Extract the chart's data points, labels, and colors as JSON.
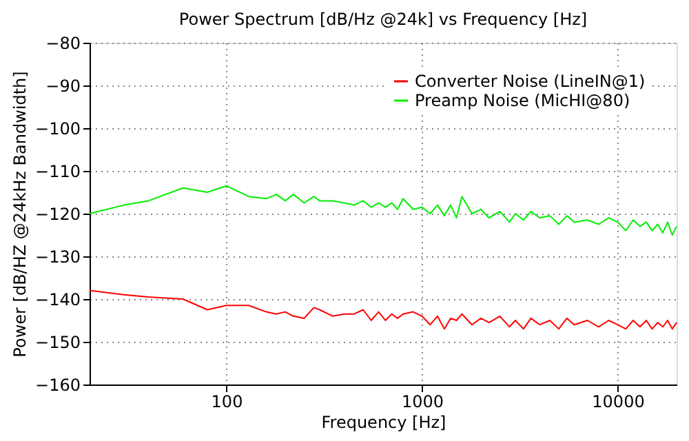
{
  "chart_data": {
    "type": "line",
    "title": "Power Spectrum [dB/Hz @24k] vs Frequency [Hz]",
    "xlabel": "Frequency [Hz]",
    "ylabel": "Power [dB/HZ @24kHz Bandwidth]",
    "x": [
      20,
      30,
      40,
      60,
      80,
      100,
      130,
      160,
      180,
      200,
      220,
      250,
      280,
      300,
      350,
      400,
      450,
      500,
      550,
      600,
      650,
      700,
      750,
      800,
      900,
      1000,
      1100,
      1200,
      1300,
      1400,
      1500,
      1600,
      1800,
      2000,
      2200,
      2500,
      2800,
      3000,
      3300,
      3600,
      4000,
      4500,
      5000,
      5500,
      6000,
      7000,
      8000,
      9000,
      10000,
      11000,
      12000,
      13000,
      14000,
      15000,
      16000,
      17000,
      18000,
      19000,
      20000
    ],
    "series": [
      {
        "name": "Converter Noise (LineIN@1)",
        "color": "#ff0000",
        "values": [
          -138,
          -139,
          -139.5,
          -140,
          -142.5,
          -141.5,
          -141.5,
          -143,
          -143.5,
          -143,
          -144,
          -144.5,
          -142,
          -142.5,
          -144,
          -143.5,
          -143.5,
          -142.5,
          -145,
          -143,
          -145,
          -143.5,
          -144.5,
          -143.5,
          -143,
          -144,
          -146,
          -144,
          -147,
          -144.5,
          -145,
          -143.5,
          -146,
          -144.5,
          -145.5,
          -144,
          -146.5,
          -145,
          -147,
          -144.5,
          -146,
          -145,
          -147,
          -144.5,
          -146,
          -145,
          -146.5,
          -145,
          -146,
          -147,
          -145,
          -146.5,
          -145,
          -147,
          -145.5,
          -146.5,
          -145,
          -147,
          -145.5
        ]
      },
      {
        "name": "Preamp Noise (MicHI@80)",
        "color": "#00ee00",
        "values": [
          -120,
          -118,
          -117,
          -114,
          -115,
          -113.5,
          -116,
          -116.5,
          -115.5,
          -117,
          -115.5,
          -117.5,
          -116,
          -117,
          -117,
          -117.5,
          -118,
          -117,
          -118.5,
          -117.5,
          -118.5,
          -117.5,
          -119,
          -116.5,
          -119,
          -118.5,
          -120,
          -118,
          -120.5,
          -118,
          -121,
          -116,
          -120,
          -119,
          -121,
          -119.5,
          -122,
          -120,
          -121.5,
          -119.5,
          -121,
          -120.5,
          -122.5,
          -120.5,
          -122,
          -121.5,
          -122.5,
          -121,
          -122,
          -124,
          -121.5,
          -123,
          -122,
          -124,
          -122.5,
          -124.5,
          -122,
          -125,
          -123
        ]
      }
    ],
    "xlim": [
      20,
      20000
    ],
    "xticks": [
      100,
      1000,
      10000
    ],
    "ylim": [
      -160,
      -80
    ],
    "yticks": [
      -160,
      -150,
      -140,
      -130,
      -120,
      -110,
      -100,
      -90,
      -80
    ],
    "log": "x",
    "grid": true,
    "legend": "top right",
    "line_style": "solid",
    "marker": "none"
  }
}
